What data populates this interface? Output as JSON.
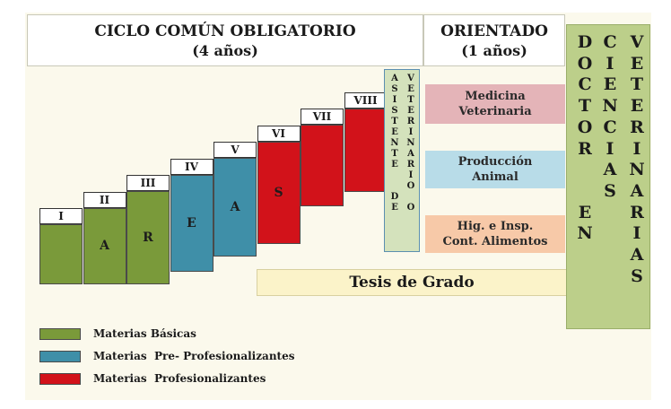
{
  "header": {
    "ciclo_title": "CICLO COMÚN OBLIGATORIO",
    "ciclo_sub": "(4 años)",
    "orient_title": "ORIENTADO",
    "orient_sub": "(1 años)"
  },
  "semesters": [
    {
      "numeral": "I",
      "block_letter": "",
      "category": "basicas"
    },
    {
      "numeral": "II",
      "block_letter": "A",
      "category": "basicas"
    },
    {
      "numeral": "III",
      "block_letter": "R",
      "category": "basicas"
    },
    {
      "numeral": "IV",
      "block_letter": "E",
      "category": "pre"
    },
    {
      "numeral": "V",
      "block_letter": "A",
      "category": "pre"
    },
    {
      "numeral": "VI",
      "block_letter": "S",
      "category": "prof"
    },
    {
      "numeral": "VII",
      "block_letter": "",
      "category": "prof"
    },
    {
      "numeral": "VIII",
      "block_letter": "",
      "category": "prof"
    }
  ],
  "asistente": {
    "col1": [
      "A",
      "S",
      "I",
      "S",
      "T",
      "E",
      "N",
      "T",
      "E",
      "",
      "",
      "D",
      "E"
    ],
    "col2": [
      "V",
      "E",
      "T",
      "E",
      "R",
      "I",
      "N",
      "A",
      "R",
      "I",
      "O",
      "",
      "O"
    ]
  },
  "orientations": [
    {
      "line1": "Medicina",
      "line2": "Veterinaria",
      "color": "#e4b4b8"
    },
    {
      "line1": "Producción",
      "line2": "Animal",
      "color": "#b8dce8"
    },
    {
      "line1": "Hig. e Insp.",
      "line2": "Cont. Alimentos",
      "color": "#f7c9a8"
    }
  ],
  "tesis": "Tesis de Grado",
  "doctor": {
    "col1": [
      "D",
      "O",
      "C",
      "T",
      "O",
      "R",
      "",
      "",
      "E",
      "N"
    ],
    "col2": [
      "C",
      "I",
      "E",
      "N",
      "C",
      "I",
      "A",
      "S"
    ],
    "col3": [
      "V",
      "E",
      "T",
      "E",
      "R",
      "I",
      "N",
      "A",
      "R",
      "I",
      "A",
      "S"
    ]
  },
  "legend": [
    {
      "label": "Materias Básicas",
      "color": "#7a9a3a"
    },
    {
      "label": "Materias  Pre- Profesionalizantes",
      "color": "#3f8fa8"
    },
    {
      "label": "Materias  Profesionalizantes",
      "color": "#d2121a"
    }
  ],
  "colors": {
    "basicas": "#7a9a3a",
    "pre": "#3f8fa8",
    "prof": "#d2121a",
    "background": "#fbf9ec",
    "asistente": "#d4e2bc",
    "doctor": "#bccf8a",
    "tesis": "#fbf3c9"
  }
}
